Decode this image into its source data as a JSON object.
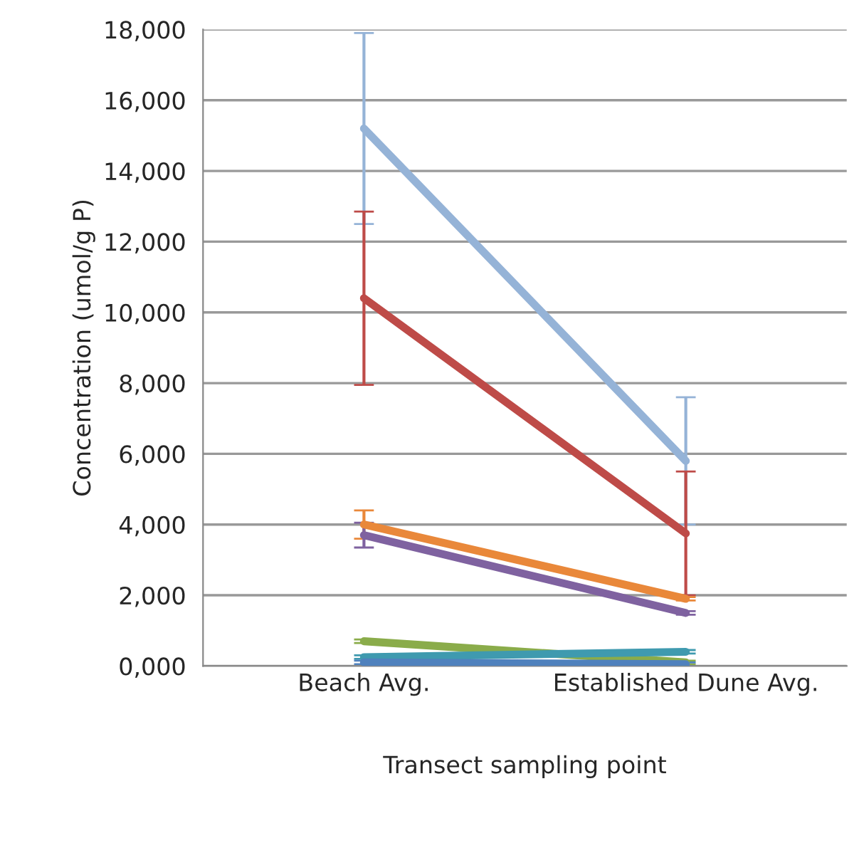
{
  "chart_data": {
    "type": "line",
    "xlabel": "Transect sampling point",
    "ylabel": "Concentration (umol/g P)",
    "categories": [
      "Beach Avg.",
      "Established Dune Avg."
    ],
    "ylim": [
      0,
      18000
    ],
    "yticks": [
      {
        "value": 0,
        "label": "0,000"
      },
      {
        "value": 2000,
        "label": "2,000"
      },
      {
        "value": 4000,
        "label": "4,000"
      },
      {
        "value": 6000,
        "label": "6,000"
      },
      {
        "value": 8000,
        "label": "8,000"
      },
      {
        "value": 10000,
        "label": "10,000"
      },
      {
        "value": 12000,
        "label": "12,000"
      },
      {
        "value": 14000,
        "label": "14,000"
      },
      {
        "value": 16000,
        "label": "16,000"
      },
      {
        "value": 18000,
        "label": "18,000"
      }
    ],
    "grid": "y",
    "marker": "none",
    "line_style": "solid",
    "series": [
      {
        "color": "#95b3d7",
        "values": [
          15200,
          5800
        ],
        "errors": [
          2700,
          1800
        ]
      },
      {
        "color": "#be4b48",
        "values": [
          10400,
          3750
        ],
        "errors": [
          2450,
          1750
        ]
      },
      {
        "color": "#e9883a",
        "values": [
          4000,
          1900
        ],
        "errors": [
          400,
          50
        ]
      },
      {
        "color": "#7f62a0",
        "values": [
          3700,
          1500
        ],
        "errors": [
          350,
          50
        ]
      },
      {
        "color": "#8aac4a",
        "values": [
          700,
          100
        ],
        "errors": [
          50,
          50
        ]
      },
      {
        "color": "#3f9aaf",
        "values": [
          250,
          400
        ],
        "errors": [
          50,
          50
        ]
      },
      {
        "color": "#4f81bd",
        "values": [
          100,
          50
        ],
        "errors": [
          50,
          50
        ]
      }
    ]
  }
}
